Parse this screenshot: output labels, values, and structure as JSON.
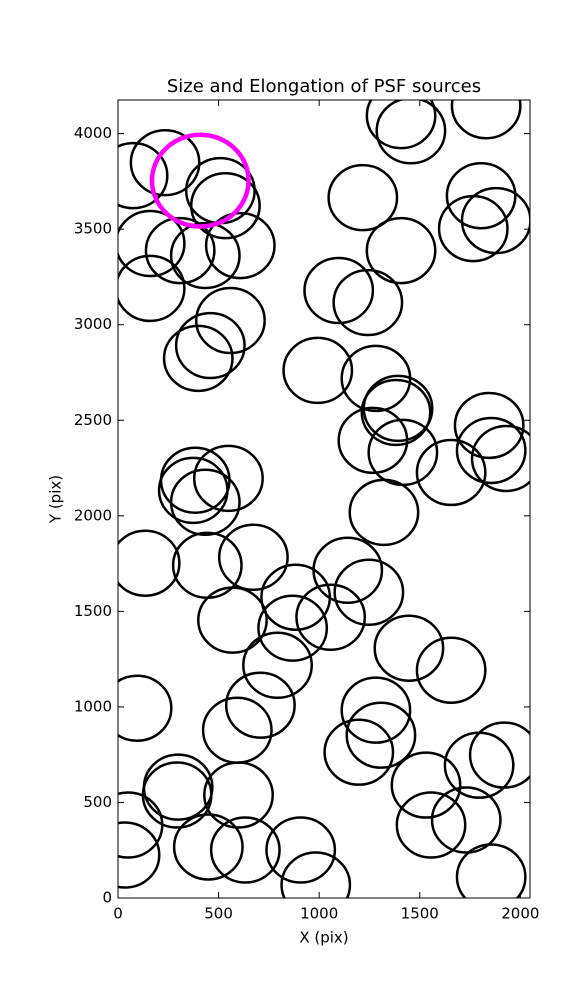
{
  "chart_data": {
    "type": "scatter",
    "title": "Size and Elongation of PSF sources",
    "xlabel": "X (pix)",
    "ylabel": "Y (pix)",
    "xlim": [
      0,
      2048
    ],
    "ylim": [
      0,
      4176
    ],
    "xticks": [
      0,
      500,
      1000,
      1500,
      2000
    ],
    "yticks": [
      0,
      500,
      1000,
      1500,
      2000,
      2500,
      3000,
      3500,
      4000
    ],
    "color": "#000000",
    "radius": 170,
    "x": [
      75,
      234,
      509,
      534,
      160,
      309,
      434,
      608,
      160,
      559,
      459,
      399,
      1217,
      1407,
      1097,
      1242,
      1456,
      1407,
      1830,
      1805,
      1766,
      1880,
      993,
      1282,
      1392,
      1382,
      1267,
      1416,
      1656,
      1845,
      1855,
      1930,
      1322,
      384,
      374,
      434,
      549,
      135,
      444,
      673,
      883,
      1142,
      1247,
      1057,
      868,
      569,
      793,
      708,
      95,
      1446,
      1656,
      1282,
      1307,
      1197,
      593,
      299,
      294,
      599,
      50,
      35,
      449,
      633,
      908,
      983,
      1531,
      1556,
      1731,
      1920,
      1795,
      1855
    ],
    "y": [
      3780,
      3848,
      3702,
      3623,
      3425,
      3388,
      3362,
      3414,
      3190,
      3022,
      2891,
      2824,
      3665,
      3388,
      3179,
      3116,
      4015,
      4094,
      4146,
      3675,
      3503,
      3545,
      2761,
      2719,
      2562,
      2541,
      2395,
      2332,
      2227,
      2473,
      2342,
      2300,
      2018,
      2186,
      2133,
      2071,
      2196,
      1752,
      1741,
      1783,
      1574,
      1715,
      1600,
      1469,
      1412,
      1454,
      1218,
      1009,
      993,
      1307,
      1192,
      983,
      852,
      763,
      878,
      580,
      539,
      539,
      382,
      225,
      267,
      251,
      251,
      68,
      591,
      382,
      408,
      748,
      695,
      110
    ],
    "highlight": {
      "x": 409,
      "y": 3754,
      "radius": 240,
      "color": "#ff00ff"
    }
  }
}
